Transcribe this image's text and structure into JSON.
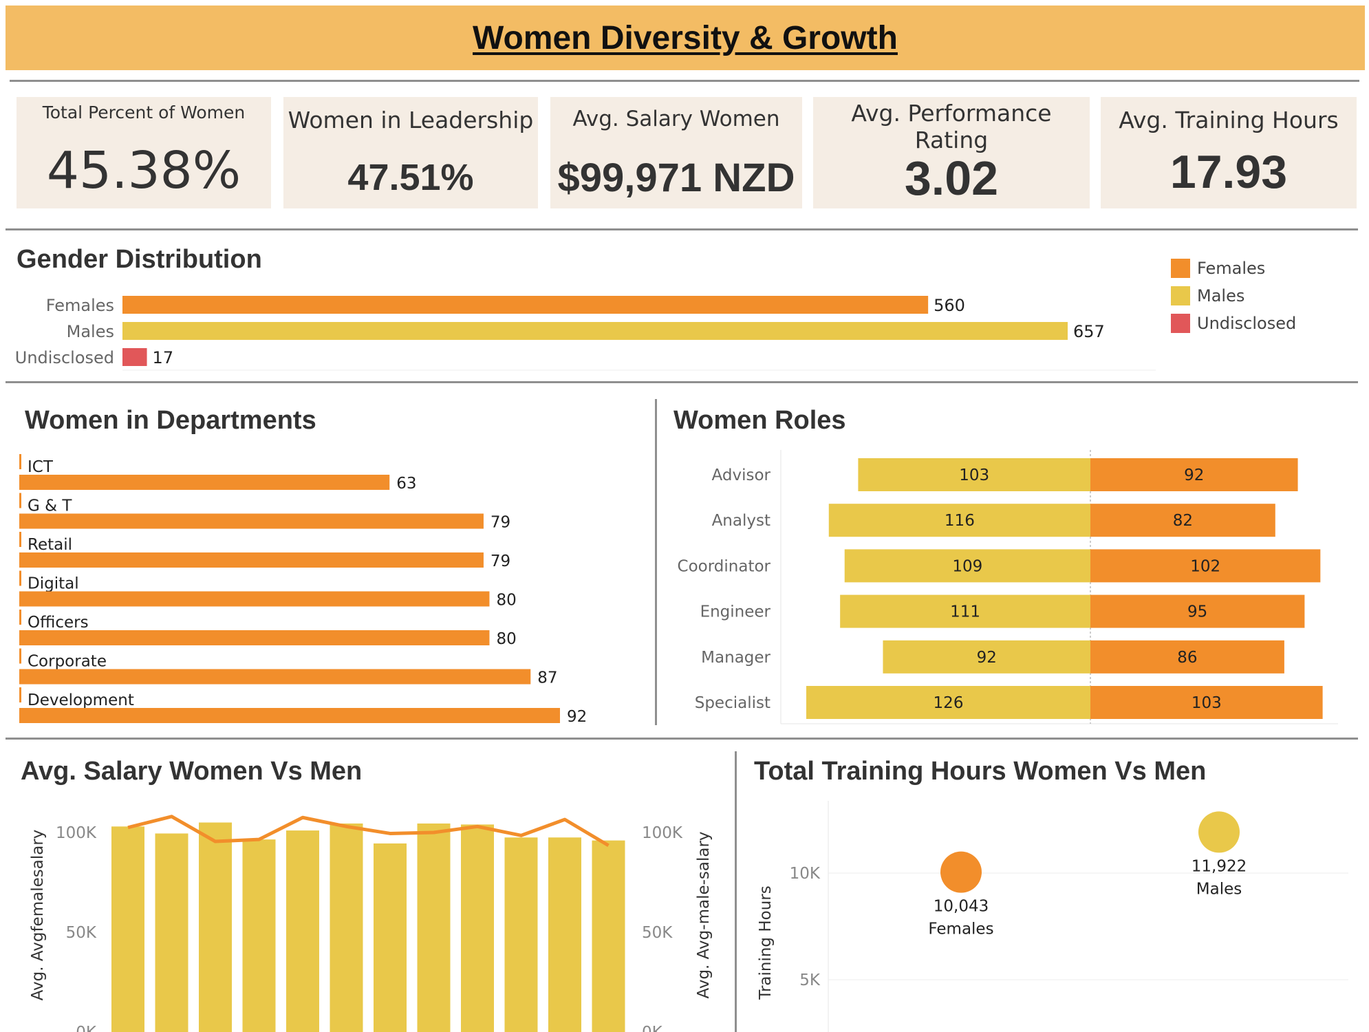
{
  "title": "Women Diversity & Growth",
  "kpis": [
    {
      "label": "Total Percent of Women",
      "value": "45.38%"
    },
    {
      "label": "Women in Leadership",
      "value": "47.51%"
    },
    {
      "label": "Avg. Salary Women",
      "value": "$99,971 NZD"
    },
    {
      "label": "Avg. Performance Rating",
      "value": "3.02"
    },
    {
      "label": "Avg. Training Hours",
      "value": "17.93"
    }
  ],
  "colors": {
    "female": "#f28e2b",
    "male": "#e9c84a",
    "undisclosed": "#e15759",
    "kpi_bg": "#f5ede4",
    "banner": "#f3bc64"
  },
  "chart_data": [
    {
      "id": "gender",
      "type": "bar",
      "orientation": "horizontal",
      "title": "Gender Distribution",
      "categories": [
        "Females",
        "Males",
        "Undisclosed"
      ],
      "values": [
        560,
        657,
        17
      ],
      "legend": {
        "position": "top-right",
        "entries": [
          "Females",
          "Males",
          "Undisclosed"
        ]
      }
    },
    {
      "id": "departments",
      "type": "bar",
      "orientation": "horizontal",
      "title": "Women in Departments",
      "categories": [
        "ICT",
        "G & T",
        "Retail",
        "Digital",
        "Officers",
        "Corporate",
        "Development"
      ],
      "values": [
        63,
        79,
        79,
        80,
        80,
        87,
        92
      ]
    },
    {
      "id": "roles",
      "type": "bar",
      "orientation": "diverging",
      "title": "Women Roles",
      "categories": [
        "Advisor",
        "Analyst",
        "Coordinator",
        "Engineer",
        "Manager",
        "Specialist"
      ],
      "series": [
        {
          "values": [
            103,
            116,
            109,
            111,
            92,
            126
          ]
        },
        {
          "values": [
            92,
            82,
            102,
            95,
            86,
            103
          ]
        }
      ]
    },
    {
      "id": "salary",
      "type": "bar",
      "title": "Avg. Salary Women Vs Men",
      "ylabel": "Avg. Avgfemalesalary",
      "ylabel_right": "Avg. Avg-male-salary",
      "yticks": [
        "0K",
        "50K",
        "100K"
      ],
      "ylim": [
        0,
        110000
      ],
      "series": [
        {
          "name": "Avg. Avgfemalesalary",
          "type": "bar",
          "values": [
            103000,
            99500,
            105000,
            96500,
            101000,
            104500,
            94500,
            104500,
            104000,
            97500,
            97500,
            96000
          ]
        },
        {
          "name": "Avg. Avg-male-salary",
          "type": "line",
          "values": [
            102500,
            108000,
            95500,
            96500,
            107500,
            103000,
            99500,
            100000,
            103000,
            98500,
            106500,
            93500
          ]
        }
      ]
    },
    {
      "id": "training",
      "type": "scatter",
      "title": "Total Training Hours Women Vs Men",
      "ylabel": "Training Hours",
      "yticks": [
        "5K",
        "10K"
      ],
      "ylim": [
        2500,
        13500
      ],
      "points": [
        {
          "x": "Females",
          "y": 10043,
          "value_label": "10,043",
          "category_label": "Females"
        },
        {
          "x": "Males",
          "y": 11922,
          "value_label": "11,922",
          "category_label": "Males"
        }
      ]
    }
  ]
}
